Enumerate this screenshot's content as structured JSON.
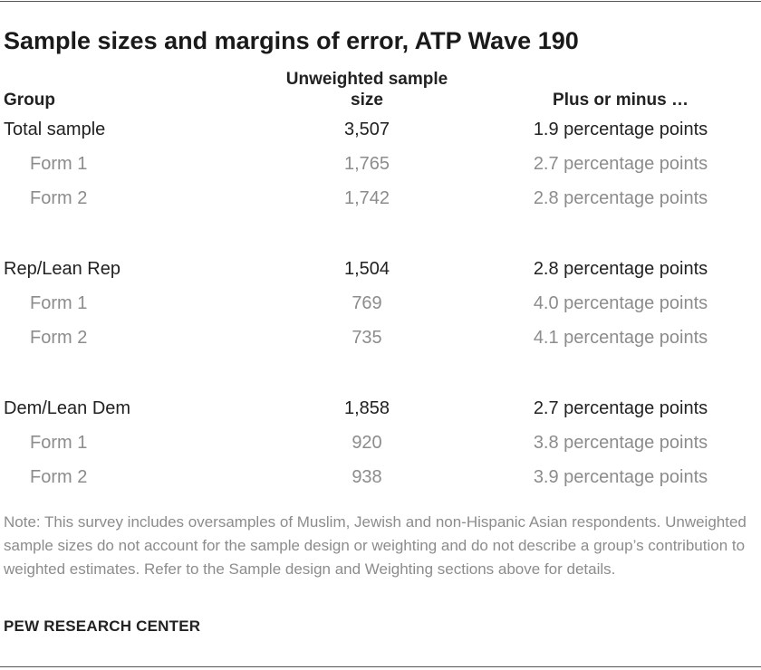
{
  "title": "Sample sizes and margins of error, ATP Wave 190",
  "headers": {
    "group": "Group",
    "sample_size": "Unweighted sample size",
    "moe": "Plus or minus …"
  },
  "rows": [
    {
      "group": "Total sample",
      "size": "3,507",
      "moe": "1.9 percentage points",
      "level": "main"
    },
    {
      "group": "Form 1",
      "size": "1,765",
      "moe": "2.7 percentage points",
      "level": "sub"
    },
    {
      "group": "Form 2",
      "size": "1,742",
      "moe": "2.8 percentage points",
      "level": "sub"
    },
    {
      "group": "Rep/Lean Rep",
      "size": "1,504",
      "moe": "2.8 percentage points",
      "level": "main"
    },
    {
      "group": "Form 1",
      "size": "769",
      "moe": "4.0 percentage points",
      "level": "sub"
    },
    {
      "group": "Form 2",
      "size": "735",
      "moe": "4.1 percentage points",
      "level": "sub"
    },
    {
      "group": "Dem/Lean Dem",
      "size": "1,858",
      "moe": "2.7 percentage points",
      "level": "main"
    },
    {
      "group": "Form 1",
      "size": "920",
      "moe": "3.8 percentage points",
      "level": "sub"
    },
    {
      "group": "Form 2",
      "size": "938",
      "moe": "3.9 percentage points",
      "level": "sub"
    }
  ],
  "note": "Note: This survey includes oversamples of Muslim, Jewish and non-Hispanic Asian respondents. Unweighted sample sizes do not account for the sample design or weighting and do not describe a group’s contribution to weighted estimates. Refer to the Sample design and Weighting sections above for details.",
  "source": "PEW RESEARCH CENTER",
  "colors": {
    "text_main": "#222222",
    "text_sub": "#8c8c8c",
    "rule": "#555555"
  }
}
